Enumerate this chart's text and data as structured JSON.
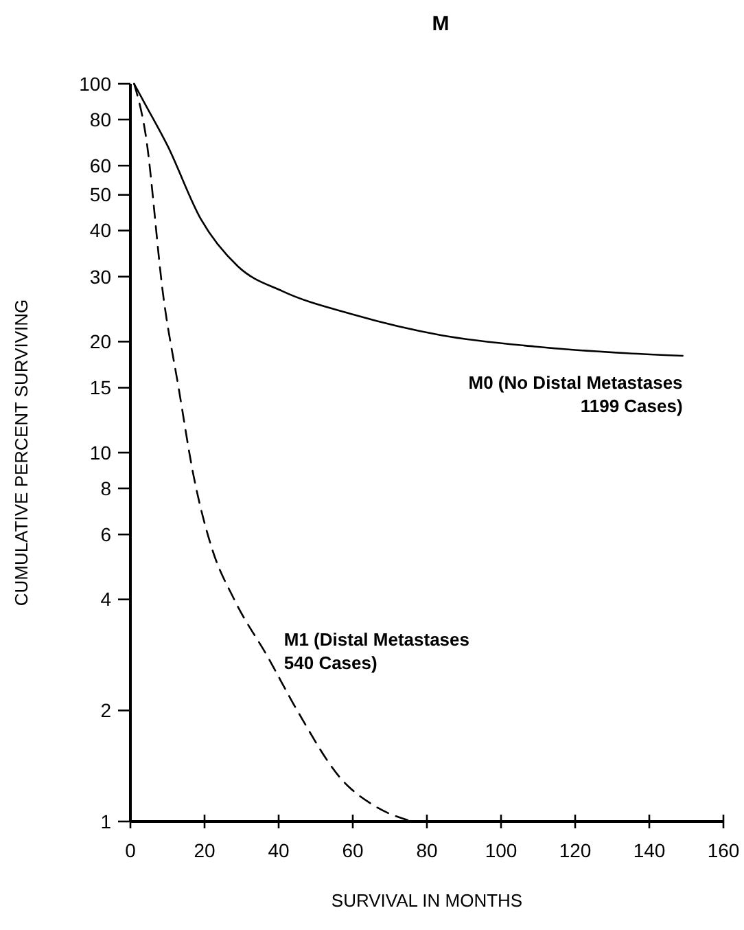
{
  "chart_data": {
    "type": "line",
    "title": "M",
    "xlabel": "SURVIVAL IN MONTHS",
    "ylabel": "CUMULATIVE PERCENT SURVIVING",
    "log": "y",
    "xlim": [
      0,
      160
    ],
    "xticks": [
      0,
      20,
      40,
      60,
      80,
      100,
      120,
      140,
      160
    ],
    "ylim": [
      1,
      100
    ],
    "yticks": [
      1,
      2,
      4,
      6,
      8,
      10,
      15,
      20,
      30,
      40,
      50,
      60,
      80,
      100
    ],
    "grid": false,
    "series": [
      {
        "name": "M0 (No Distal Metastases 1199 Cases)",
        "color": "#000000",
        "line_style": "solid",
        "x": [
          1,
          4,
          10,
          19,
          29,
          41,
          60,
          84,
          109,
          134,
          149
        ],
        "values": [
          100,
          88,
          68,
          43,
          32,
          27.4,
          23.7,
          20.8,
          19.4,
          18.6,
          18.3
        ]
      },
      {
        "name": "M1 (Distal Metastases 540 Cases)",
        "color": "#000000",
        "line_style": "dashed",
        "x": [
          1,
          4,
          9,
          13,
          17,
          22,
          28,
          37,
          45,
          57,
          66,
          76
        ],
        "values": [
          100,
          74,
          26,
          15,
          8.7,
          5.5,
          4,
          2.8,
          2,
          1.3,
          1.1,
          1
        ]
      }
    ]
  }
}
